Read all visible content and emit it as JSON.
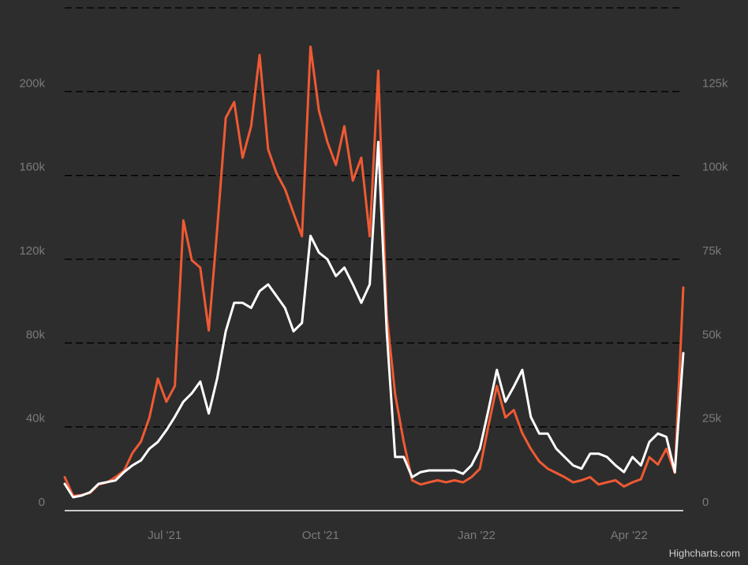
{
  "chart_data": {
    "type": "line",
    "x": [
      0,
      5,
      10,
      15,
      20,
      25,
      30,
      35,
      40,
      45,
      50,
      55,
      60,
      65,
      70,
      75,
      80,
      85,
      90,
      95,
      100,
      105,
      110,
      115,
      120,
      125,
      130,
      135,
      140,
      145,
      150,
      155,
      160,
      165,
      170,
      175,
      180,
      185,
      190,
      195,
      200,
      205,
      210,
      215,
      220,
      225,
      230,
      235,
      240,
      245,
      250,
      255,
      260,
      265,
      270,
      275,
      280,
      285,
      290,
      295,
      300,
      305,
      310,
      315,
      320,
      325,
      330,
      335,
      340,
      345,
      350,
      355,
      360,
      365
    ],
    "xlim": [
      0,
      365
    ],
    "xticks": [
      {
        "value": 59,
        "label": "Jul '21"
      },
      {
        "value": 151,
        "label": "Oct '21"
      },
      {
        "value": 243,
        "label": "Jan '22"
      },
      {
        "value": 333,
        "label": "Apr '22"
      }
    ],
    "ylim": [
      0,
      240000
    ],
    "yticks": [
      0,
      {
        "value": 40000,
        "label": "40k"
      },
      {
        "value": 80000,
        "label": "80k"
      },
      {
        "value": 120000,
        "label": "120k"
      },
      {
        "value": 160000,
        "label": "160k"
      },
      {
        "value": 200000,
        "label": "200k"
      }
    ],
    "y2lim": [
      0,
      150000
    ],
    "y2ticks": [
      0,
      {
        "value": 25000,
        "label": "25k"
      },
      {
        "value": 50000,
        "label": "50k"
      },
      {
        "value": 75000,
        "label": "75k"
      },
      {
        "value": 100000,
        "label": "100k"
      },
      {
        "value": 125000,
        "label": "125k"
      }
    ],
    "grid": true,
    "series": [
      {
        "color": "#ef5a33",
        "axis": "y",
        "values": [
          16000,
          7000,
          7500,
          8500,
          12500,
          13500,
          16000,
          19000,
          27500,
          33000,
          44500,
          63000,
          52000,
          59500,
          138500,
          119500,
          116000,
          86000,
          134500,
          187500,
          195000,
          168500,
          183500,
          217500,
          172500,
          161000,
          153500,
          142000,
          131000,
          221500,
          191000,
          176000,
          165000,
          183500,
          157500,
          168500,
          131000,
          210000,
          93500,
          55500,
          33000,
          14500,
          12500,
          13500,
          14500,
          13500,
          14500,
          13500,
          16000,
          20000,
          40500,
          59500,
          44500,
          48000,
          37000,
          29500,
          23500,
          20000,
          18000,
          16000,
          13500,
          14500,
          16000,
          12500,
          13500,
          14500,
          11500,
          13500,
          15000,
          25500,
          22000,
          29500,
          18000,
          106500
        ]
      },
      {
        "color": "#ffffff",
        "axis": "y2",
        "values": [
          8000,
          4000,
          4500,
          5500,
          8000,
          8500,
          9000,
          11500,
          13500,
          15000,
          18500,
          20500,
          24000,
          28000,
          32500,
          35000,
          38500,
          29000,
          39500,
          53500,
          62000,
          62000,
          60500,
          65500,
          67500,
          64000,
          60500,
          53500,
          56000,
          82000,
          77000,
          75000,
          70000,
          72500,
          67500,
          62000,
          67500,
          110000,
          53500,
          16000,
          16000,
          10000,
          11500,
          12000,
          12000,
          12000,
          12000,
          11000,
          13500,
          18500,
          30000,
          42000,
          32500,
          37000,
          42000,
          28000,
          23000,
          23000,
          18500,
          16000,
          13500,
          12500,
          17000,
          17000,
          16000,
          13500,
          11500,
          16000,
          13500,
          20500,
          23000,
          22000,
          11500,
          47000
        ]
      }
    ],
    "credits": "Highcharts.com"
  }
}
